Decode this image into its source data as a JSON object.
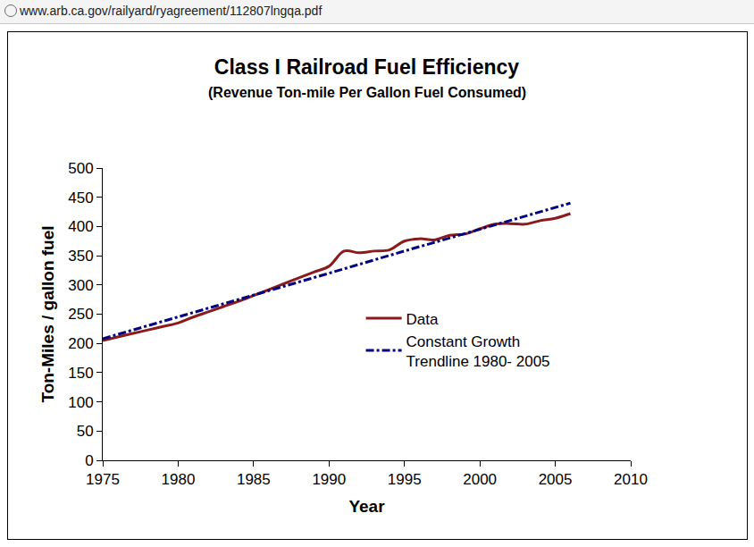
{
  "browser": {
    "url": "www.arb.ca.gov/railyard/ryagreement/112807lngqa.pdf"
  },
  "chart_data": {
    "type": "line",
    "title": "Class I Railroad Fuel Efficiency",
    "subtitle": "(Revenue Ton-mile Per Gallon Fuel Consumed)",
    "x_label": "Year",
    "y_label": "Ton-Miles / gallon fuel",
    "series": [
      {
        "name": "Data",
        "color": "#8b1a1a",
        "line_style": "solid",
        "x": [
          1975,
          1976,
          1977,
          1978,
          1979,
          1980,
          1981,
          1982,
          1983,
          1984,
          1985,
          1986,
          1987,
          1988,
          1989,
          1990,
          1991,
          1992,
          1993,
          1994,
          1995,
          1996,
          1997,
          1998,
          1999,
          2000,
          2001,
          2002,
          2003,
          2004,
          2005,
          2006
        ],
        "values": [
          205,
          211,
          217,
          223,
          229,
          235,
          245,
          254,
          263,
          272,
          282,
          292,
          302,
          312,
          322,
          332,
          358,
          355,
          358,
          360,
          375,
          379,
          377,
          385,
          387,
          396,
          404,
          405,
          404,
          410,
          414,
          422
        ]
      },
      {
        "name": "Constant Growth\nTrendline 1980- 2005",
        "color": "#000080",
        "line_style": "dashdot",
        "x": [
          1975,
          1980,
          1985,
          1990,
          1995,
          2000,
          2005,
          2006
        ],
        "values": [
          208,
          245,
          283,
          320,
          358,
          395,
          433,
          440
        ]
      }
    ],
    "xlim": [
      1975,
      2010
    ],
    "xticks": [
      1975,
      1980,
      1985,
      1990,
      1995,
      2000,
      2005,
      2010
    ],
    "ylim": [
      0,
      500
    ],
    "yticks": [
      0,
      50,
      100,
      150,
      200,
      250,
      300,
      350,
      400,
      450,
      500
    ],
    "grid": false,
    "legend": "center"
  }
}
